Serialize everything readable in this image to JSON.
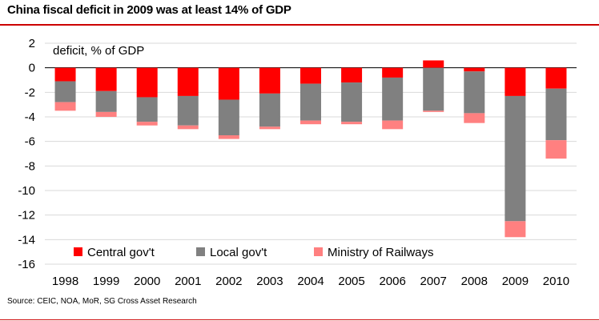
{
  "title": "China fiscal deficit in 2009 was at least 14% of GDP",
  "source": "Source: CEIC, NOA, MoR, SG Cross Asset Research",
  "chart_data": {
    "type": "bar",
    "stacked": true,
    "title": "China fiscal deficit in 2009 was at least 14% of GDP",
    "annotation": "deficit, % of GDP",
    "ylabel": "",
    "xlabel": "",
    "ylim": [
      -16,
      2
    ],
    "yticks": [
      2,
      0,
      -2,
      -4,
      -6,
      -8,
      -10,
      -12,
      -14,
      -16
    ],
    "grid": true,
    "legend_position": "bottom-inside",
    "categories": [
      "1998",
      "1999",
      "2000",
      "2001",
      "2002",
      "2003",
      "2004",
      "2005",
      "2006",
      "2007",
      "2008",
      "2009",
      "2010"
    ],
    "series": [
      {
        "name": "Central gov't",
        "color": "#ff0000",
        "values": [
          -1.1,
          -1.9,
          -2.4,
          -2.3,
          -2.6,
          -2.1,
          -1.3,
          -1.2,
          -0.8,
          0.6,
          -0.3,
          -2.3,
          -1.7
        ]
      },
      {
        "name": "Local gov't",
        "color": "#808080",
        "values": [
          -1.7,
          -1.7,
          -2.0,
          -2.4,
          -2.9,
          -2.7,
          -3.0,
          -3.2,
          -3.5,
          -3.5,
          -3.4,
          -10.2,
          -4.2
        ]
      },
      {
        "name": "Ministry of Railways",
        "color": "#ff8080",
        "values": [
          -0.7,
          -0.4,
          -0.3,
          -0.3,
          -0.3,
          -0.2,
          -0.3,
          -0.2,
          -0.7,
          -0.1,
          -0.8,
          -1.3,
          -1.5
        ]
      }
    ]
  }
}
